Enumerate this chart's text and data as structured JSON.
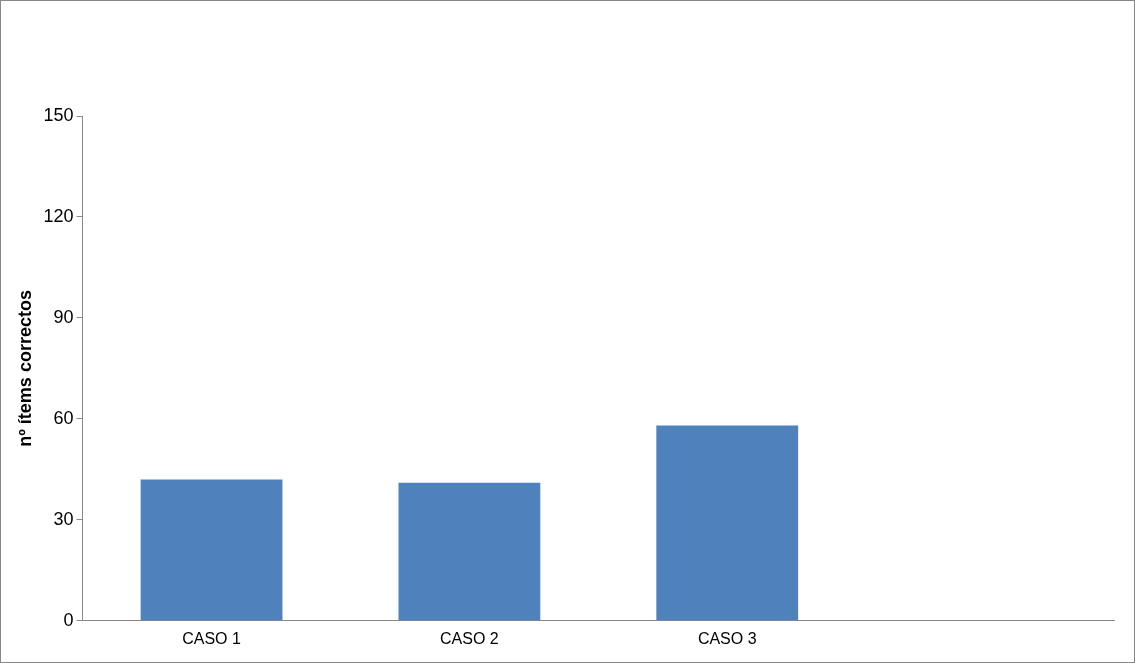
{
  "chart_data": {
    "type": "bar",
    "ylabel": "nº ítems correctos",
    "categories": [
      "CASO 1",
      "CASO 2",
      "CASO 3",
      null
    ],
    "values": [
      42,
      41,
      58,
      null
    ],
    "color": "#4f81bd",
    "ylim": [
      0,
      150
    ],
    "yticks": [
      0,
      30,
      60,
      90,
      120,
      150
    ],
    "grid": false,
    "legend": false
  }
}
